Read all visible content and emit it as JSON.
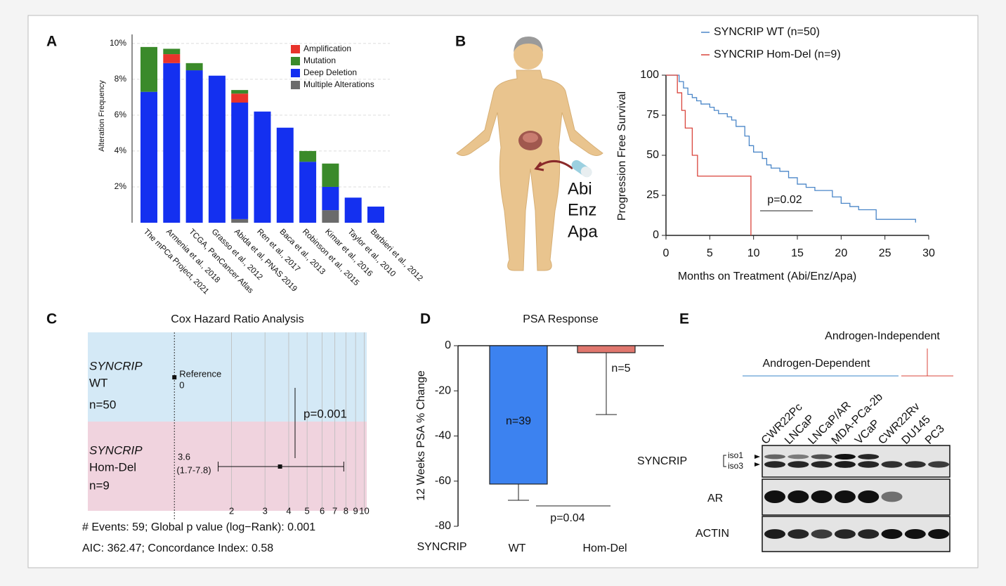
{
  "chart_data": [
    {
      "type": "stacked_bar",
      "panel": "A",
      "ylabel": "Alteration Frequency",
      "categories": [
        "The mPCa Project, 2021",
        "Armenia et al., 2018",
        "TCGA, PanCancer Atlas",
        "Grasso et al., 2012",
        "Abida et al, PNAS 2019",
        "Ren et al., 2017",
        "Baca et al., 2013",
        "Robinson et al., 2015",
        "Kimar et al., 2016",
        "Taylor et al., 2010",
        "Barbieri et al., 2012"
      ],
      "series": [
        {
          "name": "Amplification",
          "color": "#e8332b",
          "values": [
            0,
            0.5,
            0,
            0,
            0.5,
            0,
            0,
            0,
            0,
            0,
            0
          ]
        },
        {
          "name": "Mutation",
          "color": "#3a8a2a",
          "values": [
            2.5,
            0.3,
            0.4,
            0,
            0.2,
            0,
            0,
            0.6,
            1.3,
            0,
            0
          ]
        },
        {
          "name": "Deep Deletion",
          "color": "#1430f0",
          "values": [
            7.3,
            8.9,
            8.5,
            8.2,
            6.5,
            6.2,
            5.3,
            3.4,
            1.3,
            1.4,
            0.9
          ]
        },
        {
          "name": "Multiple Alterations",
          "color": "#6b6b6b",
          "values": [
            0,
            0,
            0,
            0,
            0.2,
            0,
            0,
            0,
            0.7,
            0,
            0
          ]
        }
      ],
      "ylim": [
        0,
        10.5
      ],
      "yticks": [
        {
          "value": 2,
          "label": "2%"
        },
        {
          "value": 4,
          "label": "4%"
        },
        {
          "value": 6,
          "label": "6%"
        },
        {
          "value": 8,
          "label": "8%"
        },
        {
          "value": 10,
          "label": "10%"
        }
      ],
      "grid": true,
      "legend": "top-right"
    },
    {
      "type": "survival",
      "panel": "B",
      "labels": [
        "Abi",
        "Enz",
        "Apa"
      ],
      "xlabel": "Months on Treatment (Abi/Enz/Apa)",
      "ylabel": "Progression Free Survival",
      "series": [
        {
          "name": "SYNCRIP WT (n=50)",
          "color": "#4a86c8",
          "x": [
            0,
            1.5,
            2,
            2.5,
            3,
            3.5,
            4,
            5,
            5.5,
            6,
            7,
            7.5,
            8,
            9,
            9.5,
            10,
            11,
            11.5,
            12,
            13,
            14,
            15,
            16,
            17,
            19,
            20,
            21,
            22,
            24,
            28.5
          ],
          "values": [
            100,
            96,
            92,
            88,
            86,
            84,
            82,
            80,
            78,
            76,
            74,
            72,
            68,
            62,
            56,
            52,
            48,
            44,
            42,
            40,
            36,
            32,
            30,
            28,
            24,
            20,
            18,
            16,
            10,
            8
          ]
        },
        {
          "name": "SYNCRIP Hom-Del (n=9)",
          "color": "#d9443b",
          "x": [
            0,
            1.3,
            1.8,
            2.2,
            3.0,
            3.6,
            9.7
          ],
          "values": [
            100,
            89,
            78,
            67,
            50,
            37,
            0
          ]
        }
      ],
      "xlim": [
        0,
        30
      ],
      "xticks": [
        0,
        5,
        10,
        15,
        20,
        25,
        30
      ],
      "ylim": [
        0,
        100
      ],
      "yticks": [
        0,
        25,
        50,
        75,
        100
      ],
      "annotations": [
        "p=0.02"
      ]
    },
    {
      "type": "forest",
      "panel": "C",
      "title": "Cox Hazard Ratio Analysis",
      "rows": [
        {
          "group": "SYNCRIP",
          "name": "WT",
          "n": "n=50",
          "label": "Reference",
          "text": "0",
          "value": 1
        },
        {
          "group": "SYNCRIP",
          "name": "Hom-Del",
          "n": "n=9",
          "value": 3.6,
          "value_label": "3.6",
          "low": 1.7,
          "high": 7.8,
          "ci_label": "(1.7-7.8)"
        }
      ],
      "xscale": "log",
      "xlim": [
        0.35,
        10.3
      ],
      "xticks": [
        2,
        3,
        4,
        5,
        6,
        7,
        8,
        9,
        10
      ],
      "annotations": [
        "p=0.001"
      ],
      "footer": [
        "# Events: 59; Global p value (log−Rank): 0.001",
        "AIC: 362.47; Concordance Index: 0.58"
      ]
    },
    {
      "type": "error_bar",
      "panel": "D",
      "title": "PSA Response",
      "ylabel": "12 Weeks PSA % Change",
      "group_label": "SYNCRIP",
      "categories": [
        "WT",
        "Hom-Del"
      ],
      "values": [
        -61.3,
        -3.1
      ],
      "errors": [
        7.2,
        27.4
      ],
      "count_labels": [
        "n=39",
        "n=5"
      ],
      "colors": [
        "#3c82f0",
        "#e0776e"
      ],
      "ylim": [
        -80,
        0
      ],
      "yticks": [
        0,
        -20,
        -40,
        -60,
        -80
      ],
      "annotations": [
        "p=0.04"
      ]
    }
  ],
  "blot": {
    "panel": "E",
    "groups": [
      {
        "name": "Androgen-Dependent",
        "color": "#3a84c9"
      },
      {
        "name": "Androgen-Independent",
        "color": "#d9443b"
      }
    ],
    "cell_lines": [
      {
        "name": "CWR22Pc",
        "group": 0
      },
      {
        "name": "LNCaP",
        "group": 0
      },
      {
        "name": "LNCaP/AR",
        "group": 0
      },
      {
        "name": "MDA-PCa-2b",
        "group": 0
      },
      {
        "name": "VCaP",
        "group": 0
      },
      {
        "name": "CWR22Rv",
        "group": 1
      },
      {
        "name": "DU145",
        "group": 1
      },
      {
        "name": "PC3",
        "group": 1
      }
    ],
    "rows": [
      "SYNCRIP",
      "AR",
      "ACTIN"
    ],
    "isoforms": [
      "iso1",
      "iso3"
    ]
  }
}
